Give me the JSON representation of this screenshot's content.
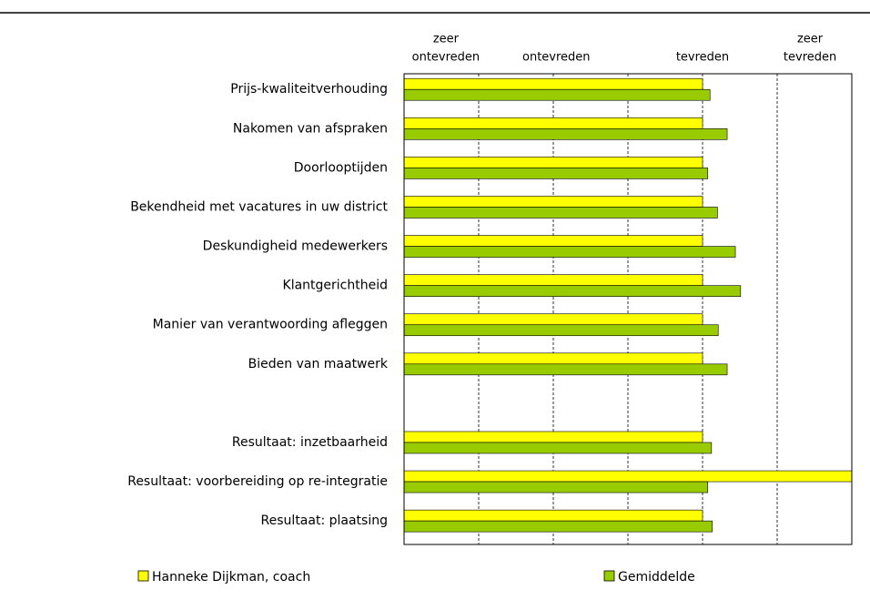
{
  "chart_data": {
    "type": "bar",
    "orientation": "horizontal",
    "categories": [
      "Prijs-kwaliteitverhouding",
      "Nakomen van afspraken",
      "Doorlooptijden",
      "Bekendheid met vacatures in uw district",
      "Deskundigheid medewerkers",
      "Klantgerichtheid",
      "Manier van verantwoording afleggen",
      "Bieden van maatwerk",
      null,
      "Resultaat: inzetbaarheid",
      "Resultaat: voorbereiding op re-integratie",
      "Resultaat: plaatsing"
    ],
    "series": [
      {
        "name": "Hanneke Dijkman, coach",
        "color": "#ffff00",
        "values": [
          4.0,
          4.0,
          4.0,
          4.0,
          4.0,
          4.0,
          4.0,
          4.0,
          null,
          4.0,
          6.0,
          4.0
        ]
      },
      {
        "name": "Gemiddelde",
        "color": "#99cc00",
        "values": [
          4.1,
          4.33,
          4.07,
          4.2,
          4.44,
          4.51,
          4.21,
          4.33,
          null,
          4.12,
          4.07,
          4.13
        ]
      }
    ],
    "xlim": [
      0,
      6
    ],
    "xgrid": [
      1,
      2,
      3,
      4,
      5
    ],
    "xticks": [
      {
        "value": 0.56,
        "label": [
          "zeer",
          "ontevreden"
        ]
      },
      {
        "value": 2.04,
        "label": [
          "",
          "ontevreden"
        ]
      },
      {
        "value": 4.0,
        "label": [
          "",
          "tevreden"
        ]
      },
      {
        "value": 5.44,
        "label": [
          "zeer",
          "tevreden"
        ]
      }
    ],
    "legend": "bottom"
  }
}
